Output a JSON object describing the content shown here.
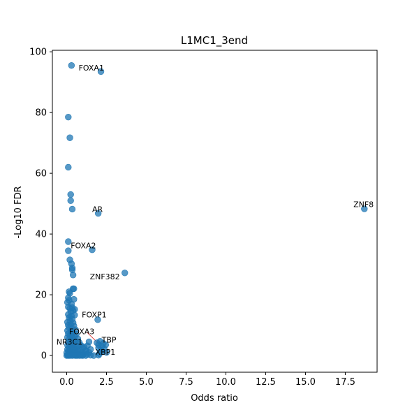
{
  "chart_data": {
    "type": "scatter",
    "title": "L1MC1_3end",
    "xlabel": "Odds ratio",
    "ylabel": "-Log10 FDR",
    "xlim": [
      -0.9,
      19.5
    ],
    "ylim": [
      -5.5,
      100.5
    ],
    "x_ticks": [
      0.0,
      2.5,
      5.0,
      7.5,
      10.0,
      12.5,
      15.0,
      17.5
    ],
    "x_tick_labels": [
      "0.0",
      "2.5",
      "5.0",
      "7.5",
      "10.0",
      "12.5",
      "15.0",
      "17.5"
    ],
    "y_ticks": [
      0,
      20,
      40,
      60,
      80,
      100
    ],
    "y_tick_labels": [
      "0",
      "20",
      "40",
      "60",
      "80",
      "100"
    ],
    "grid": false,
    "colors": {
      "marker": "#1f77b4",
      "marker_alpha": 0.75,
      "leader_line": "#d62728"
    },
    "points": [
      {
        "x": 0.3,
        "y": 95.5
      },
      {
        "x": 2.15,
        "y": 93.5
      },
      {
        "x": 0.1,
        "y": 78.5
      },
      {
        "x": 0.2,
        "y": 71.7
      },
      {
        "x": 0.1,
        "y": 62.0
      },
      {
        "x": 0.25,
        "y": 53.0
      },
      {
        "x": 0.25,
        "y": 51.0
      },
      {
        "x": 0.35,
        "y": 48.2
      },
      {
        "x": 1.98,
        "y": 46.8
      },
      {
        "x": 18.7,
        "y": 48.3
      },
      {
        "x": 0.1,
        "y": 37.5
      },
      {
        "x": 0.1,
        "y": 34.5
      },
      {
        "x": 1.6,
        "y": 34.8
      },
      {
        "x": 0.2,
        "y": 31.5
      },
      {
        "x": 0.3,
        "y": 30.2
      },
      {
        "x": 0.35,
        "y": 28.8
      },
      {
        "x": 0.35,
        "y": 28.2
      },
      {
        "x": 0.4,
        "y": 26.5
      },
      {
        "x": 3.65,
        "y": 27.2
      },
      {
        "x": 0.4,
        "y": 22.0
      },
      {
        "x": 0.45,
        "y": 22.0
      },
      {
        "x": 0.15,
        "y": 21.0
      },
      {
        "x": 0.2,
        "y": 20.5
      },
      {
        "x": 0.1,
        "y": 19.0
      },
      {
        "x": 0.15,
        "y": 18.2
      },
      {
        "x": 0.45,
        "y": 18.5
      },
      {
        "x": 0.05,
        "y": 17.5
      },
      {
        "x": 0.3,
        "y": 17.0
      },
      {
        "x": 0.1,
        "y": 16.0
      },
      {
        "x": 0.35,
        "y": 15.8
      },
      {
        "x": 0.5,
        "y": 15.2
      },
      {
        "x": 0.2,
        "y": 15.5
      },
      {
        "x": 0.25,
        "y": 14.5
      },
      {
        "x": 0.4,
        "y": 14.8
      },
      {
        "x": 0.1,
        "y": 13.5
      },
      {
        "x": 0.3,
        "y": 13.0
      },
      {
        "x": 0.5,
        "y": 13.3
      },
      {
        "x": 0.15,
        "y": 12.5
      },
      {
        "x": 0.35,
        "y": 12.0
      },
      {
        "x": 0.2,
        "y": 11.5
      },
      {
        "x": 1.95,
        "y": 11.8
      },
      {
        "x": 0.05,
        "y": 11.0
      },
      {
        "x": 0.4,
        "y": 10.8
      },
      {
        "x": 0.25,
        "y": 10.2
      },
      {
        "x": 0.1,
        "y": 10.0
      },
      {
        "x": 0.45,
        "y": 9.8
      },
      {
        "x": 0.15,
        "y": 9.2
      },
      {
        "x": 0.35,
        "y": 8.8
      },
      {
        "x": 0.55,
        "y": 8.5
      },
      {
        "x": 0.05,
        "y": 8.2
      },
      {
        "x": 0.25,
        "y": 8.0
      },
      {
        "x": 0.4,
        "y": 7.5
      },
      {
        "x": 0.1,
        "y": 7.2
      },
      {
        "x": 0.6,
        "y": 7.0
      },
      {
        "x": 0.3,
        "y": 6.8
      },
      {
        "x": 0.2,
        "y": 6.5
      },
      {
        "x": 0.5,
        "y": 6.2
      },
      {
        "x": 0.05,
        "y": 6.0
      },
      {
        "x": 0.35,
        "y": 5.8
      },
      {
        "x": 0.7,
        "y": 5.5
      },
      {
        "x": 0.15,
        "y": 5.3
      },
      {
        "x": 0.45,
        "y": 5.0
      },
      {
        "x": 0.25,
        "y": 4.8
      },
      {
        "x": 0.6,
        "y": 4.6
      },
      {
        "x": 0.1,
        "y": 4.4
      },
      {
        "x": 0.8,
        "y": 4.2
      },
      {
        "x": 0.4,
        "y": 4.0
      },
      {
        "x": 0.2,
        "y": 3.8
      },
      {
        "x": 0.55,
        "y": 3.6
      },
      {
        "x": 0.05,
        "y": 3.4
      },
      {
        "x": 0.9,
        "y": 3.3
      },
      {
        "x": 0.3,
        "y": 3.1
      },
      {
        "x": 0.7,
        "y": 3.0
      },
      {
        "x": 0.15,
        "y": 2.8
      },
      {
        "x": 0.45,
        "y": 2.6
      },
      {
        "x": 1.0,
        "y": 2.5
      },
      {
        "x": 0.25,
        "y": 2.3
      },
      {
        "x": 0.6,
        "y": 2.2
      },
      {
        "x": 0.05,
        "y": 2.0
      },
      {
        "x": 0.8,
        "y": 1.9
      },
      {
        "x": 0.35,
        "y": 1.8
      },
      {
        "x": 1.2,
        "y": 1.7
      },
      {
        "x": 0.1,
        "y": 1.5
      },
      {
        "x": 0.5,
        "y": 1.4
      },
      {
        "x": 0.7,
        "y": 1.3
      },
      {
        "x": 0.2,
        "y": 1.2
      },
      {
        "x": 0.95,
        "y": 1.1
      },
      {
        "x": 0.4,
        "y": 1.0
      },
      {
        "x": 1.4,
        "y": 1.0
      },
      {
        "x": 0.0,
        "y": 0.9
      },
      {
        "x": 0.6,
        "y": 0.8
      },
      {
        "x": 0.3,
        "y": 0.7
      },
      {
        "x": 1.1,
        "y": 0.6
      },
      {
        "x": 0.15,
        "y": 0.5
      },
      {
        "x": 0.85,
        "y": 0.5
      },
      {
        "x": 0.5,
        "y": 0.4
      },
      {
        "x": 1.3,
        "y": 0.35
      },
      {
        "x": 0.25,
        "y": 0.3
      },
      {
        "x": 0.7,
        "y": 0.25
      },
      {
        "x": 1.0,
        "y": 0.2
      },
      {
        "x": 0.05,
        "y": 0.15
      },
      {
        "x": 0.45,
        "y": 0.1
      },
      {
        "x": 1.5,
        "y": 0.1
      },
      {
        "x": 0.9,
        "y": 0.05
      },
      {
        "x": 0.35,
        "y": 0.0
      },
      {
        "x": 1.2,
        "y": 0.0
      },
      {
        "x": 0.65,
        "y": 0.0
      },
      {
        "x": 0.0,
        "y": 0.0
      },
      {
        "x": 0.2,
        "y": 0.0
      },
      {
        "x": 1.7,
        "y": 0.0
      },
      {
        "x": 0.55,
        "y": 0.0
      },
      {
        "x": 0.8,
        "y": 0.0
      },
      {
        "x": 1.0,
        "y": 0.0
      },
      {
        "x": 0.1,
        "y": 0.0
      },
      {
        "x": 1.3,
        "y": 3.2
      },
      {
        "x": 1.1,
        "y": 2.8
      },
      {
        "x": 1.5,
        "y": 2.0
      },
      {
        "x": 1.4,
        "y": 4.5
      },
      {
        "x": 1.2,
        "y": 1.5
      },
      {
        "x": 1.9,
        "y": 4.2
      },
      {
        "x": 2.0,
        "y": 3.5
      },
      {
        "x": 2.1,
        "y": 4.7
      },
      {
        "x": 2.3,
        "y": 4.0
      },
      {
        "x": 2.45,
        "y": 3.5
      },
      {
        "x": 2.2,
        "y": 3.0
      },
      {
        "x": 2.0,
        "y": 2.5
      },
      {
        "x": 2.35,
        "y": 2.2
      },
      {
        "x": 2.15,
        "y": 1.8
      },
      {
        "x": 2.25,
        "y": 1.2
      },
      {
        "x": 2.05,
        "y": 0.6
      },
      {
        "x": 2.5,
        "y": 1.0
      },
      {
        "x": 2.0,
        "y": 0.1
      }
    ],
    "annotations": [
      {
        "text": "FOXA1",
        "x": 0.75,
        "y": 94.8,
        "anchor": "start"
      },
      {
        "text": "ZNF8",
        "x": 18.65,
        "y": 49.8,
        "anchor": "middle"
      },
      {
        "text": "AR",
        "x": 1.6,
        "y": 48.2,
        "anchor": "start"
      },
      {
        "text": "FOXA2",
        "x": 0.25,
        "y": 36.2,
        "anchor": "start"
      },
      {
        "text": "ZNF382",
        "x": 1.45,
        "y": 26.0,
        "anchor": "start"
      },
      {
        "text": "FOXP1",
        "x": 0.95,
        "y": 13.5,
        "anchor": "start"
      },
      {
        "text": "FOXA3",
        "x": 0.15,
        "y": 8.0,
        "anchor": "start"
      },
      {
        "text": "NR3C1",
        "x": -0.65,
        "y": 4.5,
        "anchor": "start"
      },
      {
        "text": "TBP",
        "x": 2.2,
        "y": 5.2,
        "anchor": "start"
      },
      {
        "text": "XBP1",
        "x": 1.8,
        "y": 1.2,
        "anchor": "start"
      }
    ],
    "leader_lines": [
      {
        "x1": 1.3,
        "y1": 7.5,
        "x2": 1.95,
        "y2": 4.2
      }
    ]
  }
}
